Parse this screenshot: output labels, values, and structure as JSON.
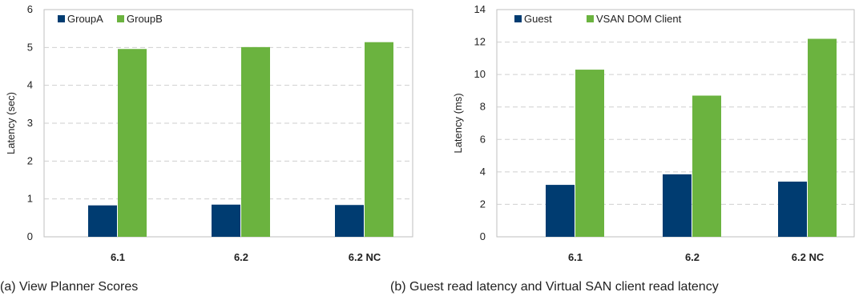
{
  "chart_data": [
    {
      "type": "bar",
      "caption": "(a) View Planner Scores",
      "ylabel": "Latency (sec)",
      "ylim": [
        0,
        6
      ],
      "yticks": [
        0,
        1,
        2,
        3,
        4,
        5,
        6
      ],
      "grid": true,
      "legend": "top-left",
      "categories": [
        "6.1",
        "6.2",
        "6.2 NC"
      ],
      "series": [
        {
          "name": "GroupA",
          "color": "#003c71",
          "values": [
            0.83,
            0.85,
            0.84
          ]
        },
        {
          "name": "GroupB",
          "color": "#6bb33f",
          "values": [
            4.96,
            5.01,
            5.14
          ]
        }
      ]
    },
    {
      "type": "bar",
      "caption": "(b) Guest read latency and Virtual SAN client read latency",
      "ylabel": "Latency (ms)",
      "ylim": [
        0,
        14
      ],
      "yticks": [
        0,
        2,
        4,
        6,
        8,
        10,
        12,
        14
      ],
      "grid": true,
      "legend": "top-left",
      "categories": [
        "6.1",
        "6.2",
        "6.2 NC"
      ],
      "series": [
        {
          "name": "Guest",
          "color": "#003c71",
          "values": [
            3.2,
            3.85,
            3.4
          ]
        },
        {
          "name": "VSAN DOM Client",
          "color": "#6bb33f",
          "values": [
            10.3,
            8.7,
            12.2
          ]
        }
      ]
    }
  ]
}
